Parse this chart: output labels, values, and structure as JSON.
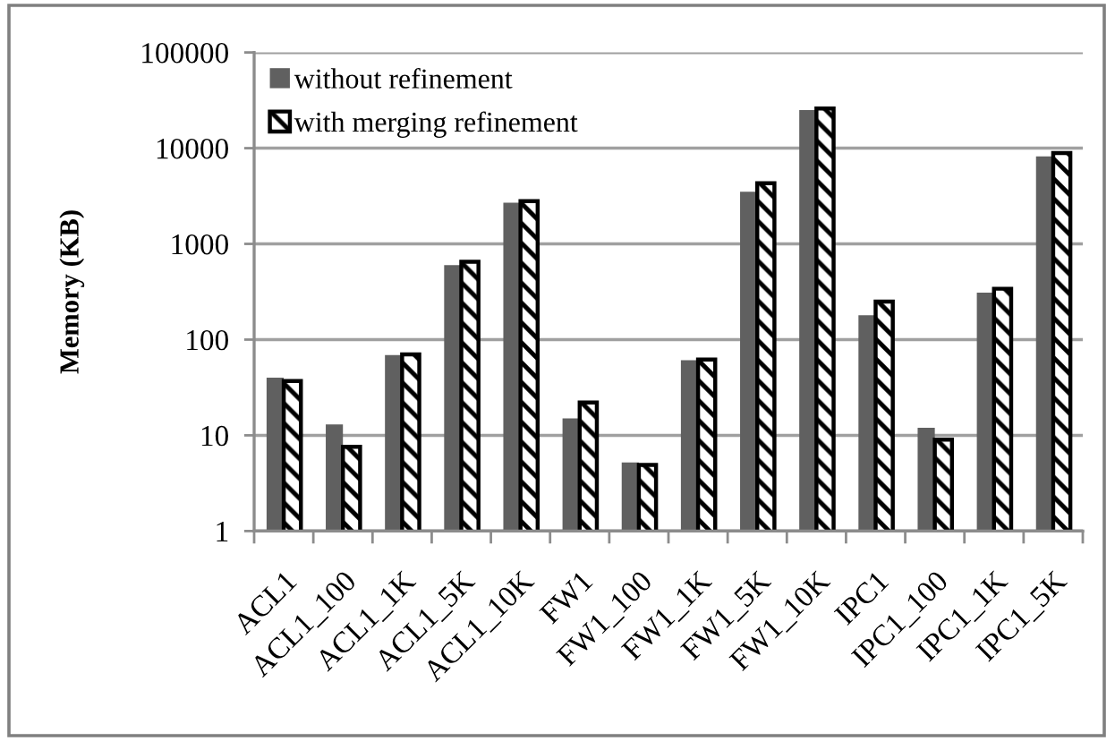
{
  "chart_data": {
    "type": "bar",
    "ylabel": "Memory (KB)",
    "categories": [
      "ACL1",
      "ACL1_100",
      "ACL1_1K",
      "ACL1_5K",
      "ACL1_10K",
      "FW1",
      "FW1_100",
      "FW1_1K",
      "FW1_5K",
      "FW1_10K",
      "IPC1",
      "IPC1_100",
      "IPC1_1K",
      "IPC1_5K"
    ],
    "series": [
      {
        "name": "without refinement",
        "color": "#606060",
        "values": [
          40,
          13,
          69,
          600,
          2700,
          15,
          5.2,
          61,
          3500,
          25000,
          180,
          12,
          310,
          8200
        ]
      },
      {
        "name": "with merging refinement",
        "color": "#000000",
        "values": [
          37,
          7.6,
          70,
          650,
          2800,
          22,
          4.9,
          62,
          4300,
          26000,
          250,
          9,
          340,
          8900
        ]
      }
    ],
    "log": true,
    "ylim": [
      1,
      100000
    ],
    "yticks": [
      1,
      10,
      100,
      1000,
      10000,
      100000
    ],
    "grid": "y",
    "legend": "top left"
  }
}
